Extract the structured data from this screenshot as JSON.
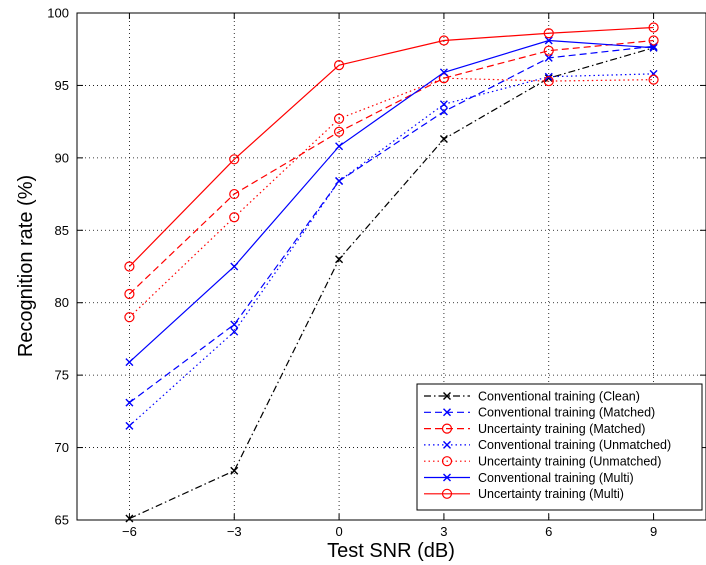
{
  "chart_data": {
    "type": "line",
    "title": "",
    "xlabel": "Test SNR (dB)",
    "ylabel": "Recognition rate (%)",
    "x": [
      -6,
      -3,
      0,
      3,
      6,
      9
    ],
    "x_tick_labels": [
      "−6",
      "−3",
      "0",
      "3",
      "6",
      "9"
    ],
    "xlim": [
      -7.5,
      10.5
    ],
    "ylim": [
      65,
      100
    ],
    "y_ticks": [
      65,
      70,
      75,
      80,
      85,
      90,
      95,
      100
    ],
    "grid": true,
    "legend_position": "bottom-right",
    "series": [
      {
        "name": "Conventional training (Clean)",
        "values": [
          65.1,
          68.4,
          83.0,
          91.3,
          95.5,
          97.6
        ],
        "color": "#000000",
        "dash": "dashdot",
        "marker": "x"
      },
      {
        "name": "Conventional training (Matched)",
        "values": [
          73.1,
          78.5,
          88.4,
          93.2,
          96.9,
          97.7
        ],
        "color": "#0000ff",
        "dash": "dashed",
        "marker": "x"
      },
      {
        "name": "Uncertainty training (Matched)",
        "values": [
          80.6,
          87.5,
          91.8,
          95.5,
          97.4,
          98.1
        ],
        "color": "#ff0000",
        "dash": "dashed",
        "marker": "o"
      },
      {
        "name": "Conventional training (Unmatched)",
        "values": [
          71.5,
          78.0,
          88.4,
          93.7,
          95.6,
          95.8
        ],
        "color": "#0000ff",
        "dash": "dotted",
        "marker": "x"
      },
      {
        "name": "Uncertainty training (Unmatched)",
        "values": [
          79.0,
          85.9,
          92.7,
          95.5,
          95.3,
          95.4
        ],
        "color": "#ff0000",
        "dash": "dotted",
        "marker": "o"
      },
      {
        "name": "Conventional training (Multi)",
        "values": [
          75.9,
          82.5,
          90.8,
          95.9,
          98.1,
          97.6
        ],
        "color": "#0000ff",
        "dash": "solid",
        "marker": "x"
      },
      {
        "name": "Uncertainty training (Multi)",
        "values": [
          82.5,
          89.9,
          96.4,
          98.1,
          98.6,
          99.0
        ],
        "color": "#ff0000",
        "dash": "solid",
        "marker": "o"
      }
    ]
  }
}
